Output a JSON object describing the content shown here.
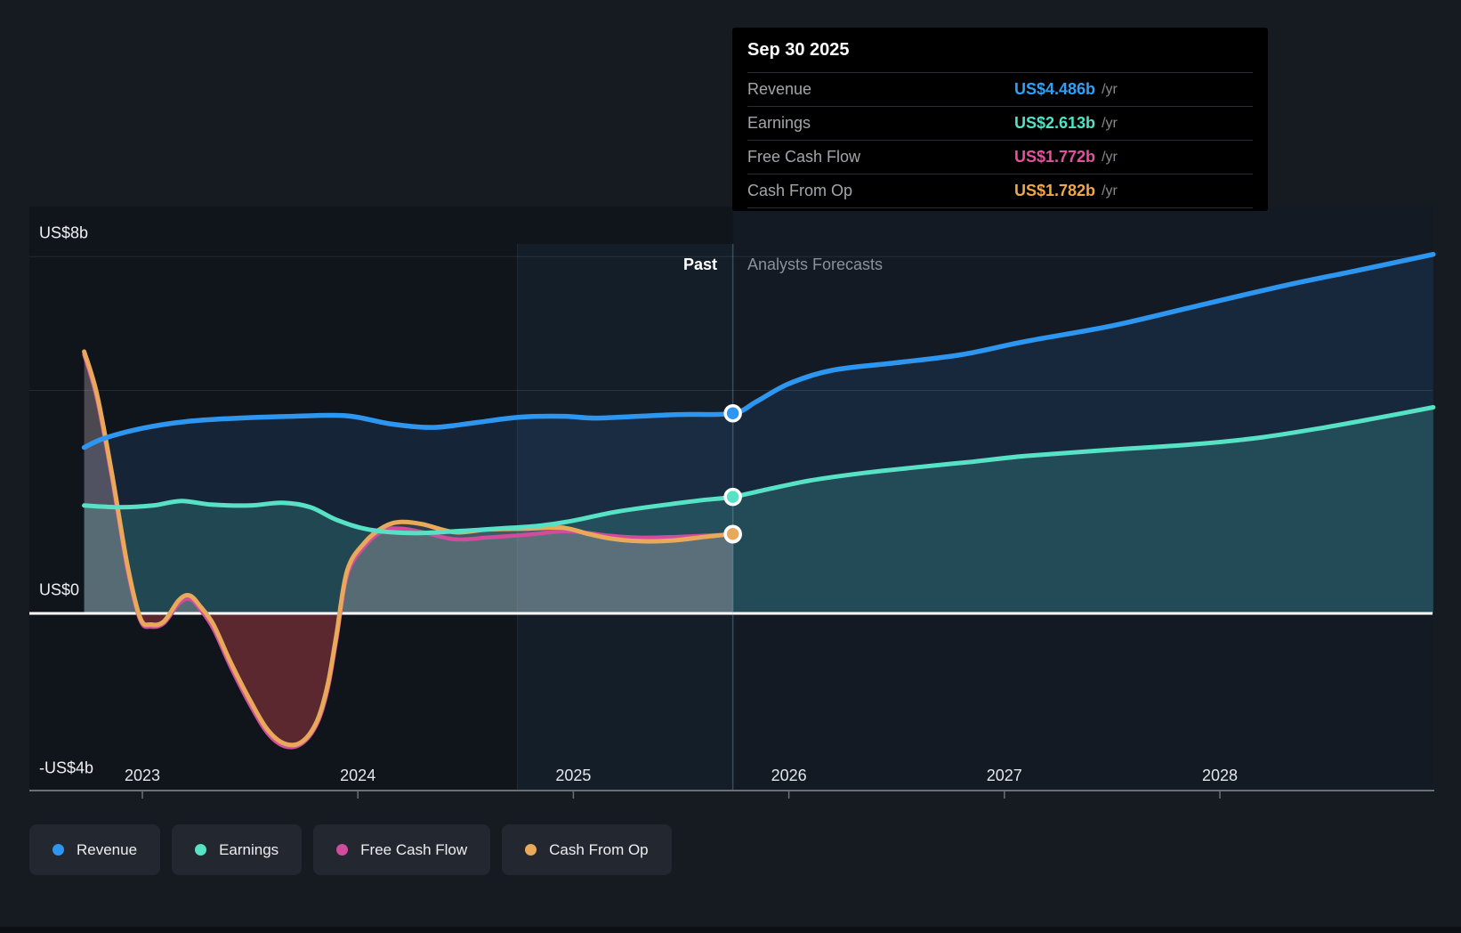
{
  "tooltip": {
    "date": "Sep 30 2025",
    "rows": [
      {
        "label": "Revenue",
        "value": "US$4.486b",
        "suffix": "/yr",
        "color": "#2da1f8"
      },
      {
        "label": "Earnings",
        "value": "US$2.613b",
        "suffix": "/yr",
        "color": "#4de3c5"
      },
      {
        "label": "Free Cash Flow",
        "value": "US$1.772b",
        "suffix": "/yr",
        "color": "#e5519f"
      },
      {
        "label": "Cash From Op",
        "value": "US$1.782b",
        "suffix": "/yr",
        "color": "#f0a848"
      }
    ]
  },
  "phase": {
    "past_label": "Past",
    "forecast_label": "Analysts Forecasts"
  },
  "legend": {
    "items": [
      {
        "label": "Revenue",
        "color": "#2d96f0"
      },
      {
        "label": "Earnings",
        "color": "#57e2c6"
      },
      {
        "label": "Free Cash Flow",
        "color": "#cf4d9c"
      },
      {
        "label": "Cash From Op",
        "color": "#e9a95a"
      }
    ]
  },
  "chart_data": {
    "type": "area",
    "units": "US$ billions per year",
    "x_axis": {
      "ticks": [
        {
          "value": 2023,
          "text": "2023"
        },
        {
          "value": 2024,
          "text": "2024"
        },
        {
          "value": 2025,
          "text": "2025"
        },
        {
          "value": 2026,
          "text": "2026"
        },
        {
          "value": 2027,
          "text": "2027"
        },
        {
          "value": 2028,
          "text": "2028"
        }
      ],
      "data_start": 2022.73,
      "data_end": 2028.99
    },
    "y_axis": {
      "labels": [
        {
          "value": 8,
          "text": "US$8b"
        },
        {
          "value": 0,
          "text": "US$0"
        },
        {
          "value": -4,
          "text": "-US$4b"
        }
      ],
      "gridlines": [
        8,
        5
      ],
      "zero_line": 0,
      "axis_bottom_value": -4
    },
    "divider": {
      "x": 2025.74,
      "date": "Sep 30 2025"
    },
    "highlight_band": {
      "from": 2024.74,
      "to": 2025.74
    },
    "series": [
      {
        "name": "Revenue",
        "color": "#2d96f0",
        "fill": "rgba(60,140,230,0.13)",
        "marker": 4.486,
        "line_width": 5.5,
        "points": [
          [
            2022.73,
            3.72
          ],
          [
            2022.82,
            3.92
          ],
          [
            2023.0,
            4.15
          ],
          [
            2023.2,
            4.3
          ],
          [
            2023.45,
            4.38
          ],
          [
            2023.7,
            4.42
          ],
          [
            2023.95,
            4.43
          ],
          [
            2024.15,
            4.25
          ],
          [
            2024.35,
            4.17
          ],
          [
            2024.55,
            4.28
          ],
          [
            2024.75,
            4.4
          ],
          [
            2024.95,
            4.42
          ],
          [
            2025.1,
            4.38
          ],
          [
            2025.3,
            4.42
          ],
          [
            2025.5,
            4.46
          ],
          [
            2025.74,
            4.486
          ],
          [
            2025.85,
            4.75
          ],
          [
            2026.0,
            5.15
          ],
          [
            2026.2,
            5.45
          ],
          [
            2026.5,
            5.62
          ],
          [
            2026.8,
            5.8
          ],
          [
            2027.1,
            6.1
          ],
          [
            2027.5,
            6.45
          ],
          [
            2027.9,
            6.9
          ],
          [
            2028.3,
            7.35
          ],
          [
            2028.65,
            7.7
          ],
          [
            2028.99,
            8.05
          ]
        ]
      },
      {
        "name": "Earnings",
        "color": "#57e2c6",
        "fill": "rgba(80,215,195,0.20)",
        "marker": 2.613,
        "line_width": 5,
        "points": [
          [
            2022.73,
            2.42
          ],
          [
            2022.9,
            2.38
          ],
          [
            2023.05,
            2.42
          ],
          [
            2023.18,
            2.52
          ],
          [
            2023.32,
            2.44
          ],
          [
            2023.5,
            2.42
          ],
          [
            2023.65,
            2.48
          ],
          [
            2023.78,
            2.38
          ],
          [
            2023.9,
            2.1
          ],
          [
            2024.05,
            1.88
          ],
          [
            2024.25,
            1.8
          ],
          [
            2024.45,
            1.84
          ],
          [
            2024.65,
            1.9
          ],
          [
            2024.85,
            1.97
          ],
          [
            2025.0,
            2.08
          ],
          [
            2025.2,
            2.28
          ],
          [
            2025.45,
            2.45
          ],
          [
            2025.6,
            2.54
          ],
          [
            2025.74,
            2.613
          ],
          [
            2025.9,
            2.78
          ],
          [
            2026.1,
            2.98
          ],
          [
            2026.35,
            3.15
          ],
          [
            2026.6,
            3.28
          ],
          [
            2026.85,
            3.4
          ],
          [
            2027.1,
            3.53
          ],
          [
            2027.5,
            3.67
          ],
          [
            2027.9,
            3.8
          ],
          [
            2028.2,
            3.95
          ],
          [
            2028.5,
            4.18
          ],
          [
            2028.75,
            4.4
          ],
          [
            2028.99,
            4.62
          ]
        ]
      },
      {
        "name": "Free Cash Flow",
        "color": "#cf4d9c",
        "fill": "rgba(215,190,195,0.17)",
        "marker": 1.772,
        "line_width": 4.5,
        "past_only": true,
        "points": [
          [
            2022.73,
            5.8
          ],
          [
            2022.79,
            4.8
          ],
          [
            2022.86,
            3.0
          ],
          [
            2022.93,
            1.0
          ],
          [
            2022.99,
            -0.15
          ],
          [
            2023.04,
            -0.3
          ],
          [
            2023.1,
            -0.22
          ],
          [
            2023.17,
            0.22
          ],
          [
            2023.22,
            0.32
          ],
          [
            2023.27,
            0.08
          ],
          [
            2023.33,
            -0.35
          ],
          [
            2023.41,
            -1.2
          ],
          [
            2023.5,
            -2.05
          ],
          [
            2023.58,
            -2.68
          ],
          [
            2023.66,
            -2.98
          ],
          [
            2023.74,
            -2.92
          ],
          [
            2023.81,
            -2.48
          ],
          [
            2023.86,
            -1.7
          ],
          [
            2023.9,
            -0.6
          ],
          [
            2023.95,
            0.85
          ],
          [
            2024.03,
            1.5
          ],
          [
            2024.12,
            1.86
          ],
          [
            2024.2,
            1.9
          ],
          [
            2024.3,
            1.82
          ],
          [
            2024.45,
            1.66
          ],
          [
            2024.6,
            1.7
          ],
          [
            2024.78,
            1.76
          ],
          [
            2024.95,
            1.84
          ],
          [
            2025.07,
            1.8
          ],
          [
            2025.17,
            1.74
          ],
          [
            2025.3,
            1.7
          ],
          [
            2025.45,
            1.71
          ],
          [
            2025.6,
            1.74
          ],
          [
            2025.74,
            1.772
          ]
        ]
      },
      {
        "name": "Cash From Op",
        "color": "#e9a95a",
        "fill": "rgba(215,190,195,0.17)",
        "marker": 1.782,
        "line_width": 5,
        "past_only": true,
        "points": [
          [
            2022.73,
            5.87
          ],
          [
            2022.79,
            4.9
          ],
          [
            2022.86,
            3.1
          ],
          [
            2022.93,
            1.1
          ],
          [
            2022.99,
            -0.1
          ],
          [
            2023.04,
            -0.25
          ],
          [
            2023.1,
            -0.18
          ],
          [
            2023.17,
            0.3
          ],
          [
            2023.22,
            0.4
          ],
          [
            2023.27,
            0.15
          ],
          [
            2023.33,
            -0.25
          ],
          [
            2023.41,
            -1.1
          ],
          [
            2023.5,
            -1.95
          ],
          [
            2023.58,
            -2.6
          ],
          [
            2023.66,
            -2.92
          ],
          [
            2023.74,
            -2.88
          ],
          [
            2023.81,
            -2.42
          ],
          [
            2023.86,
            -1.6
          ],
          [
            2023.9,
            -0.5
          ],
          [
            2023.95,
            0.95
          ],
          [
            2024.03,
            1.58
          ],
          [
            2024.12,
            1.94
          ],
          [
            2024.2,
            2.05
          ],
          [
            2024.3,
            2.0
          ],
          [
            2024.45,
            1.82
          ],
          [
            2024.6,
            1.88
          ],
          [
            2024.78,
            1.9
          ],
          [
            2024.95,
            1.92
          ],
          [
            2025.07,
            1.78
          ],
          [
            2025.17,
            1.68
          ],
          [
            2025.3,
            1.62
          ],
          [
            2025.45,
            1.63
          ],
          [
            2025.6,
            1.71
          ],
          [
            2025.74,
            1.782
          ]
        ]
      }
    ],
    "style": {
      "negative_fill": "rgba(150,55,65,0.34)",
      "gridline_color": "rgba(255,255,255,0.09)",
      "zero_line_color": "#ffffff",
      "divider_color": "rgba(140,175,215,0.32)",
      "band_fill": "rgba(90,150,215,0.07)",
      "band_edge": "rgba(140,180,220,0.12)",
      "forecast_tint": "rgba(90,140,200,0.045)",
      "plot_bg": "#10151c",
      "axis_color": "#6a7078"
    }
  }
}
